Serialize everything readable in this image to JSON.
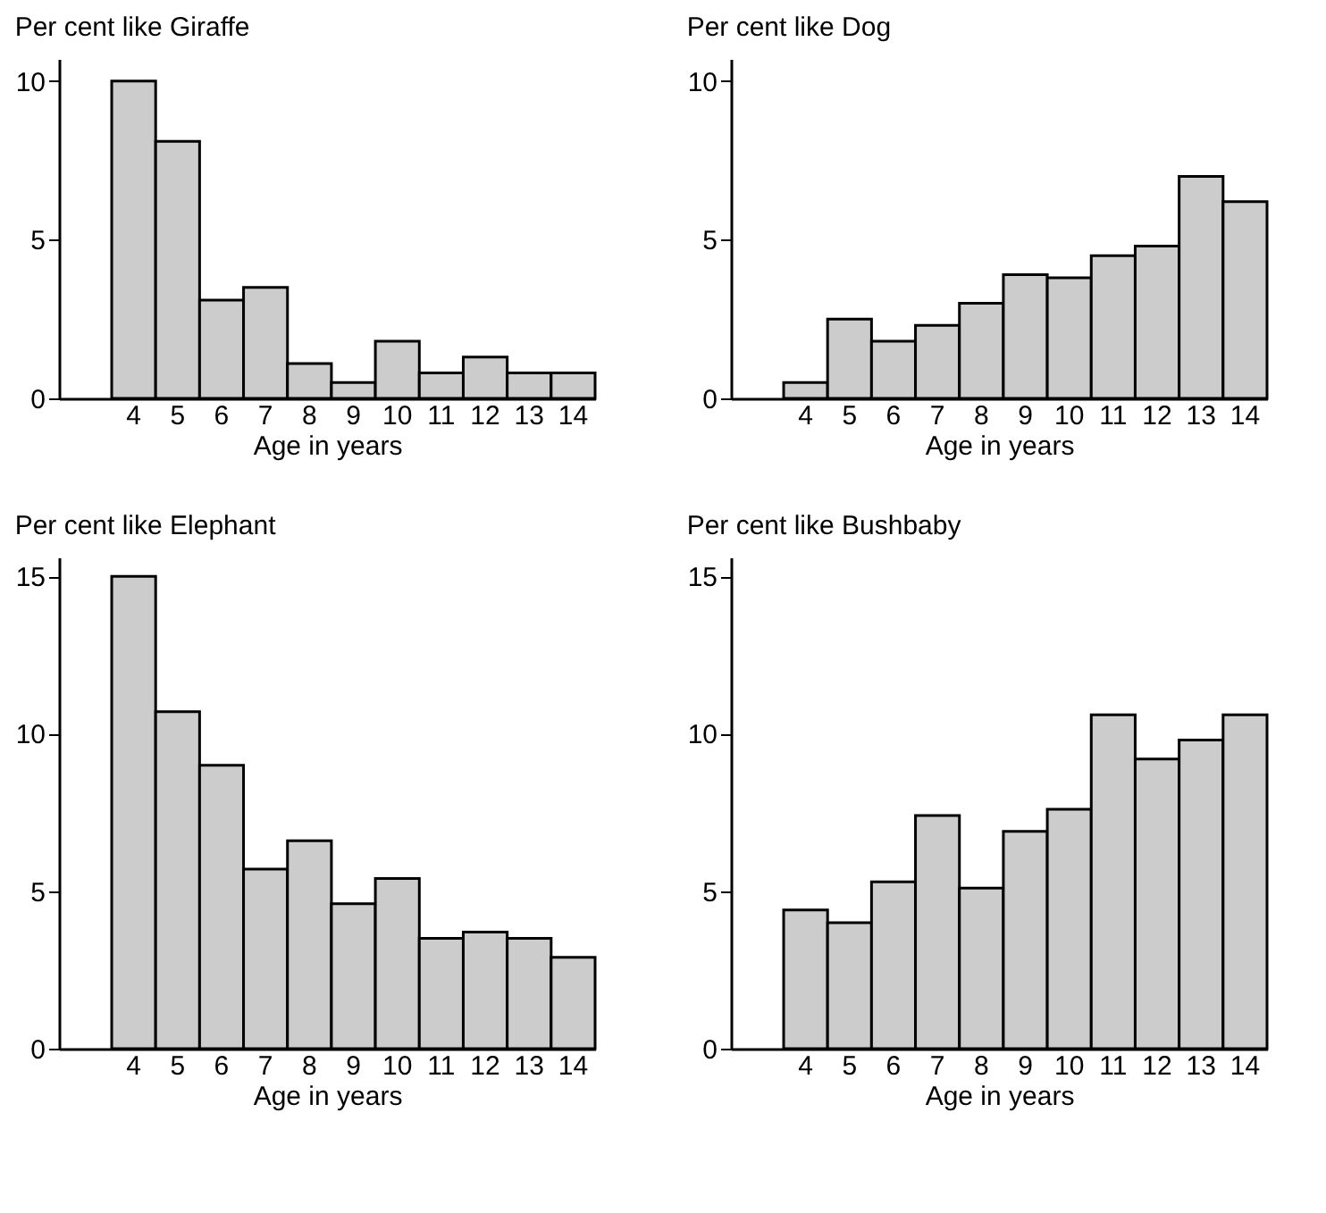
{
  "chart_data": [
    {
      "type": "bar",
      "title": "Per cent like Giraffe",
      "xlabel": "Age in years",
      "categories": [
        "4",
        "5",
        "6",
        "7",
        "8",
        "9",
        "10",
        "11",
        "12",
        "13",
        "14"
      ],
      "values": [
        10,
        8.1,
        3.1,
        3.5,
        1.1,
        0.5,
        1.8,
        0.8,
        1.3,
        0.8,
        0.8
      ],
      "color": "#cccccc",
      "ylim": [
        0,
        10.7
      ],
      "yticks": [
        0,
        5,
        10
      ],
      "grid": false
    },
    {
      "type": "bar",
      "title": "Per cent like Dog",
      "xlabel": "Age in years",
      "categories": [
        "4",
        "5",
        "6",
        "7",
        "8",
        "9",
        "10",
        "11",
        "12",
        "13",
        "14"
      ],
      "values": [
        0.5,
        2.5,
        1.8,
        2.3,
        3.0,
        3.9,
        3.8,
        4.5,
        4.8,
        7.0,
        6.2
      ],
      "color": "#cccccc",
      "ylim": [
        0,
        10.7
      ],
      "yticks": [
        0,
        5,
        10
      ],
      "grid": false
    },
    {
      "type": "bar",
      "title": "Per cent like Elephant",
      "xlabel": "Age in years",
      "categories": [
        "4",
        "5",
        "6",
        "7",
        "8",
        "9",
        "10",
        "11",
        "12",
        "13",
        "14"
      ],
      "values": [
        15,
        10.7,
        9.0,
        5.7,
        6.6,
        4.6,
        5.4,
        3.5,
        3.7,
        3.5,
        2.9
      ],
      "color": "#cccccc",
      "ylim": [
        0,
        15.6
      ],
      "yticks": [
        0,
        5,
        10,
        15
      ],
      "grid": false
    },
    {
      "type": "bar",
      "title": "Per cent like Bushbaby",
      "xlabel": "Age in years",
      "categories": [
        "4",
        "5",
        "6",
        "7",
        "8",
        "9",
        "10",
        "11",
        "12",
        "13",
        "14"
      ],
      "values": [
        4.4,
        4.0,
        5.3,
        7.4,
        5.1,
        6.9,
        7.6,
        10.6,
        9.2,
        9.8,
        10.6
      ],
      "color": "#cccccc",
      "ylim": [
        0,
        15.6
      ],
      "yticks": [
        0,
        5,
        10,
        15
      ],
      "grid": false
    }
  ]
}
